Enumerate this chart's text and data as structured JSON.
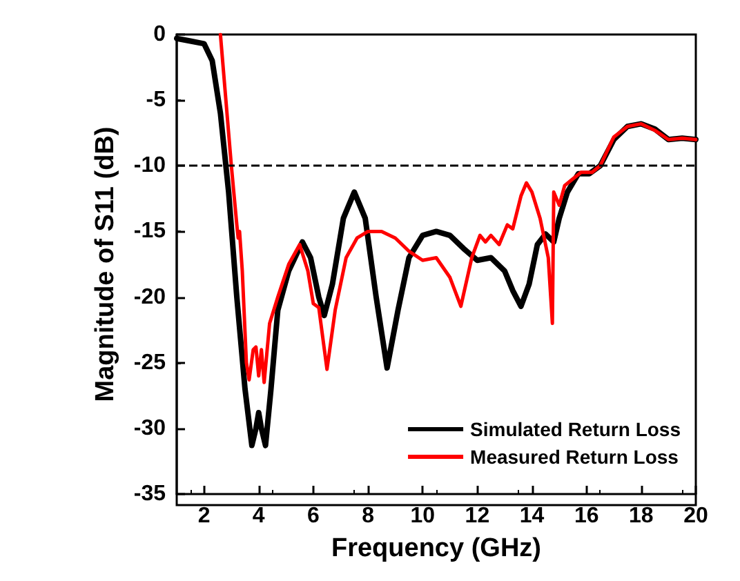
{
  "chart_data": {
    "type": "line",
    "xlabel": "Frequency (GHz)",
    "ylabel": "Magnitude of S11 (dB)",
    "xlim": [
      1,
      20
    ],
    "xticks": [
      2,
      4,
      6,
      8,
      10,
      12,
      14,
      16,
      18,
      20
    ],
    "ylim": [
      -35,
      0
    ],
    "yticks": [
      -35,
      -30,
      -25,
      -20,
      -15,
      -10,
      -5,
      0
    ],
    "grid": false,
    "legend": "bottom right",
    "marker": "none",
    "line_style": "solid",
    "ref_lines": [
      {
        "axis": "y",
        "value": -10,
        "color": "#000000",
        "line_style": "dashed"
      }
    ],
    "series": [
      {
        "name": "Simulated Return Loss",
        "color": "#000000",
        "x": [
          1,
          1.5,
          2,
          2.3,
          2.6,
          2.9,
          3.2,
          3.5,
          3.75,
          3.9,
          4.0,
          4.1,
          4.25,
          4.45,
          4.7,
          5.1,
          5.6,
          5.9,
          6.2,
          6.4,
          6.7,
          7.1,
          7.5,
          7.9,
          8.3,
          8.7,
          9.1,
          9.5,
          10,
          10.5,
          11,
          11.5,
          12,
          12.5,
          13,
          13.3,
          13.6,
          13.9,
          14.2,
          14.5,
          14.8,
          15,
          15.3,
          15.7,
          16.1,
          16.5,
          17,
          17.5,
          18,
          18.5,
          19,
          19.5,
          20
        ],
        "values": [
          -0.3,
          -0.5,
          -0.7,
          -2,
          -6,
          -12,
          -20,
          -27,
          -31.3,
          -30,
          -28.8,
          -30,
          -31.3,
          -27,
          -21,
          -18,
          -15.8,
          -17,
          -20,
          -21.4,
          -19,
          -14,
          -12,
          -14,
          -20,
          -25.4,
          -21,
          -17,
          -15.3,
          -15,
          -15.3,
          -16.3,
          -17.2,
          -17,
          -18,
          -19.5,
          -20.7,
          -19,
          -16,
          -15.2,
          -15.8,
          -14,
          -12,
          -10.6,
          -10.6,
          -10,
          -8,
          -7,
          -6.8,
          -7.2,
          -8,
          -7.9,
          -8
        ]
      },
      {
        "name": "Measured Return Loss",
        "color": "#ff0000",
        "x": [
          2.6,
          2.8,
          3.0,
          3.2,
          3.25,
          3.3,
          3.4,
          3.55,
          3.65,
          3.8,
          3.9,
          4.0,
          4.1,
          4.2,
          4.4,
          4.7,
          5.1,
          5.5,
          5.8,
          6.0,
          6.2,
          6.5,
          6.8,
          7.2,
          7.6,
          8.0,
          8.5,
          9.0,
          9.5,
          10,
          10.5,
          11,
          11.4,
          11.8,
          12.1,
          12.3,
          12.5,
          12.8,
          13.1,
          13.3,
          13.6,
          13.8,
          14.0,
          14.3,
          14.6,
          14.75,
          14.8,
          14.9,
          15.0,
          15.2,
          15.5,
          15.8,
          16.2,
          16.5,
          17,
          17.5,
          18,
          18.5,
          19,
          19.5,
          20
        ],
        "values": [
          0,
          -5,
          -10,
          -14.5,
          -15.5,
          -15,
          -18,
          -25,
          -26.3,
          -24,
          -23.8,
          -26,
          -24,
          -26.5,
          -22,
          -20,
          -17.5,
          -16,
          -18,
          -20.5,
          -20.8,
          -25.5,
          -21,
          -17,
          -15.5,
          -15,
          -15,
          -15.5,
          -16.5,
          -17.2,
          -17,
          -18.5,
          -20.7,
          -17,
          -15.3,
          -15.8,
          -15.3,
          -16,
          -14.5,
          -14.8,
          -12.3,
          -11.3,
          -12,
          -14,
          -17,
          -22,
          -12,
          -12.5,
          -13,
          -11.5,
          -11,
          -10.5,
          -10.5,
          -10,
          -7.8,
          -7,
          -6.8,
          -7.3,
          -8,
          -7.9,
          -8
        ]
      }
    ]
  }
}
